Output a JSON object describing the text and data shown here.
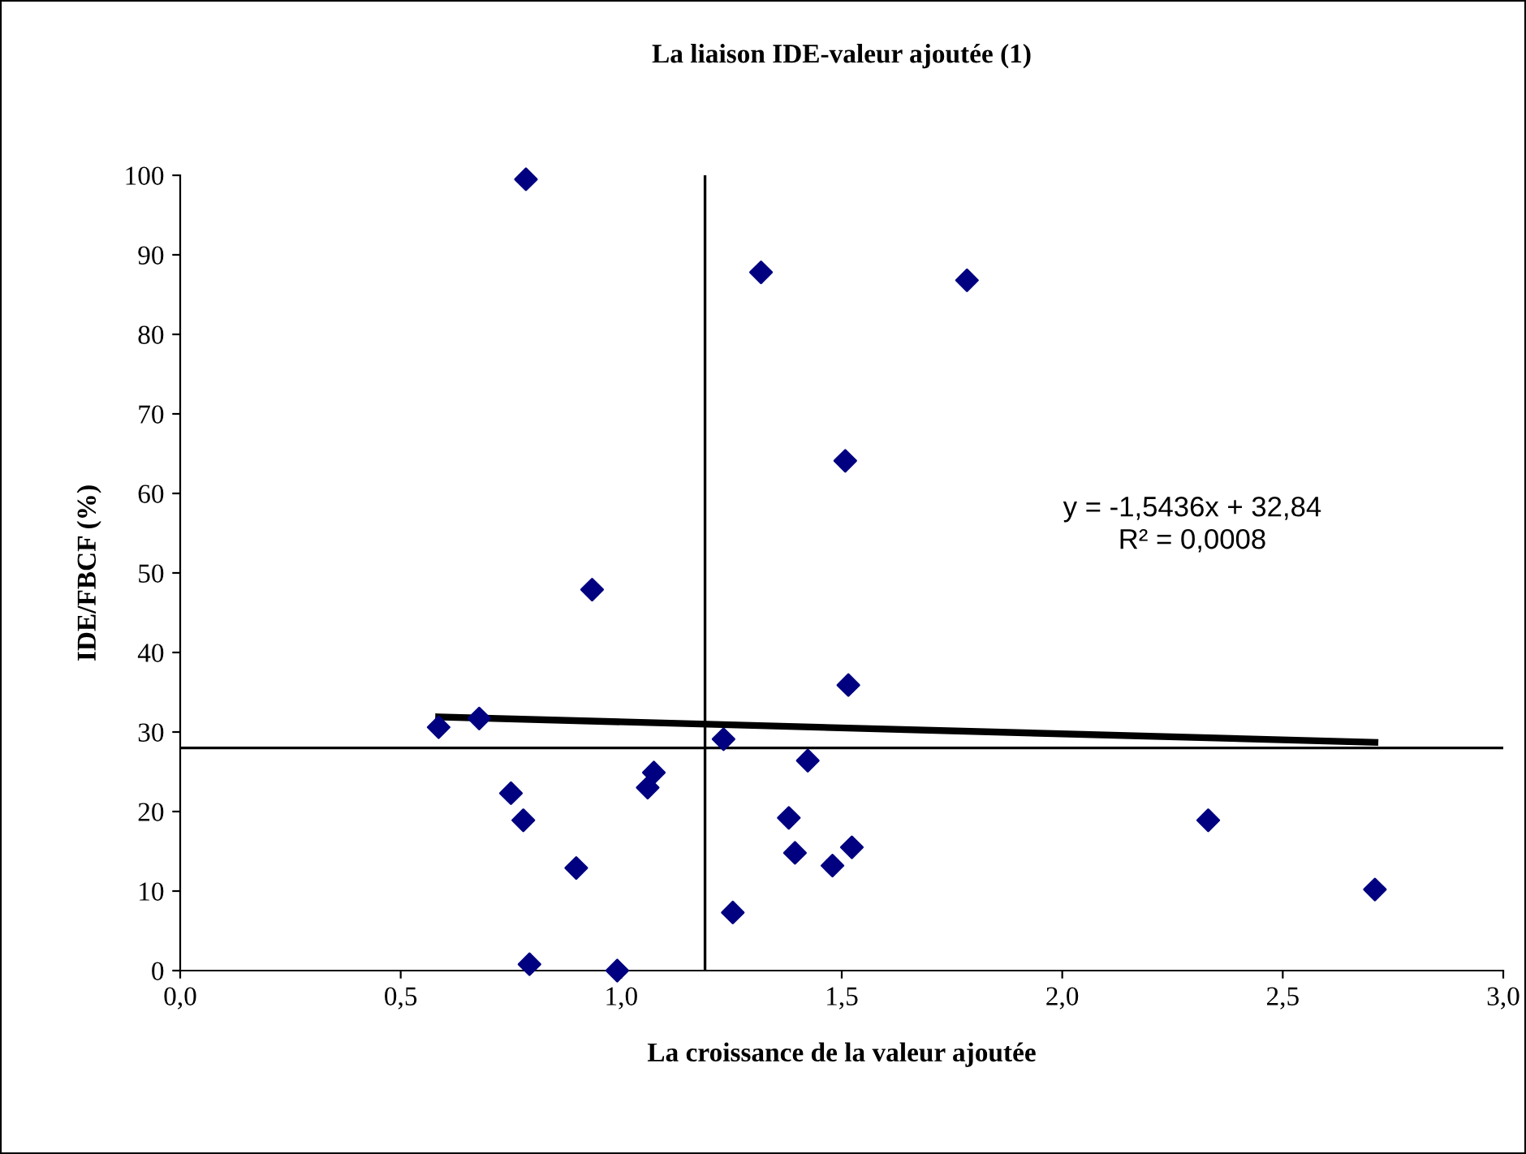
{
  "chart_data": {
    "type": "scatter",
    "title": "La liaison IDE-valeur ajoutée (1)",
    "xlabel": "La croissance de la valeur ajoutée",
    "ylabel": "IDE/FBCF (%)",
    "series": [
      {
        "color": "#000080",
        "marker": "diamond",
        "x": [
          0.784,
          1.317,
          0.934,
          0.586,
          0.678,
          1.232,
          1.074,
          1.06,
          0.75,
          0.778,
          0.898,
          0.792,
          0.991,
          1.253,
          1.38,
          1.394,
          1.479,
          1.423,
          1.784,
          1.508,
          1.515,
          1.523,
          2.331,
          2.709
        ],
        "values": [
          99.5,
          87.8,
          47.9,
          30.6,
          31.7,
          29.1,
          24.9,
          23.0,
          22.3,
          18.9,
          12.9,
          0.8,
          0,
          7.3,
          19.2,
          14.8,
          13.2,
          26.4,
          86.8,
          64.1,
          35.9,
          15.5,
          18.9,
          10.2
        ]
      },
      {
        "type": "line",
        "color": "#000000",
        "marker": "none",
        "x": [
          0.586,
          2.709
        ],
        "values": [
          31.9,
          28.7
        ]
      }
    ],
    "annotations": [
      "y = -1,5436x + 32,84\nR² = 0,0008"
    ],
    "ref_lines": [
      {
        "axis": "x",
        "value": 1.19,
        "color": "#000000"
      },
      {
        "axis": "y",
        "value": 28,
        "color": "#000000"
      }
    ],
    "xlim": [
      0,
      3
    ],
    "ylim": [
      0,
      100
    ],
    "xticks": [
      {
        "value": 0,
        "label": "0,0"
      },
      {
        "value": 0.5,
        "label": "0,5"
      },
      {
        "value": 1,
        "label": "1,0"
      },
      {
        "value": 1.5,
        "label": "1,5"
      },
      {
        "value": 2,
        "label": "2,0"
      },
      {
        "value": 2.5,
        "label": "2,5"
      },
      {
        "value": 3,
        "label": "3,0"
      }
    ],
    "yticks": [
      0,
      10,
      20,
      30,
      40,
      50,
      60,
      70,
      80,
      90,
      100
    ],
    "grid": false,
    "legend": false
  }
}
